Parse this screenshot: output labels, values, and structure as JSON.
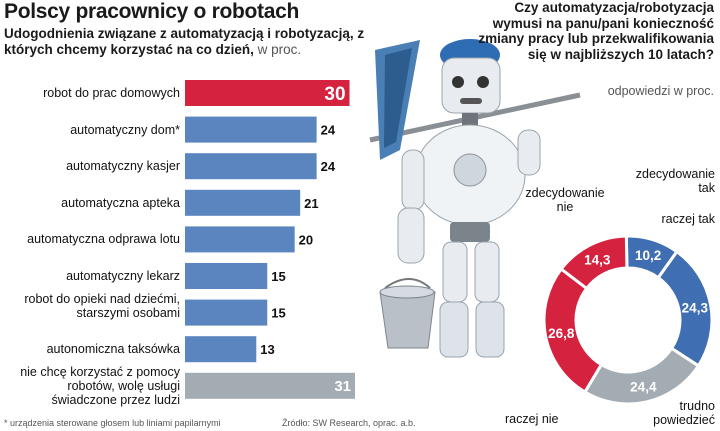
{
  "title": "Polscy pracownicy o robotach",
  "subtitle": "Udogodnienia związane z automatyzacją i robotyzacją, z których chcemy korzystać na co dzień,",
  "subtitle_unit": "w proc.",
  "footnote": "* urządzenia sterowane głosem lub liniami papilarnymi",
  "source": "Źródło: SW Research, oprac. a.b.",
  "question": {
    "title": "Czy automatyzacja/robotyzacja wymusi na panu/pani konieczność zmiany pracy lub przekwalifikowania się w najbliższych 10 latach?",
    "unit": "odpowiedzi w proc."
  },
  "colors": {
    "highlight": "#d4223f",
    "blue": "#5a85bf",
    "gray": "#a4acb3",
    "donut_blue": "#3f6fb2",
    "donut_red": "#d4223f",
    "donut_gray": "#a4acb3"
  },
  "chart_data": [
    {
      "type": "bar",
      "orientation": "horizontal",
      "title": "Udogodnienia związane z automatyzacją i robotyzacją, z których chcemy korzystać na co dzień",
      "unit": "w proc.",
      "categories": [
        "robot do prac domowych",
        "automatyczny dom*",
        "automatyczny kasjer",
        "automatyczna apteka",
        "automatyczna odprawa lotu",
        "automatyczny lekarz",
        "robot do opieki nad dziećmi, starszymi osobami",
        "autonomiczna taksówka",
        "nie chcę korzystać z pomocy robotów, wolę usługi świadczone przez ludzi"
      ],
      "values": [
        30,
        24,
        24,
        21,
        20,
        15,
        15,
        13,
        31
      ],
      "bar_colors": [
        "highlight",
        "blue",
        "blue",
        "blue",
        "blue",
        "blue",
        "blue",
        "blue",
        "gray"
      ]
    },
    {
      "type": "pie",
      "variant": "donut",
      "title": "Czy automatyzacja/robotyzacja wymusi na panu/pani konieczność zmiany pracy lub przekwalifikowania się w najbliższych 10 latach?",
      "unit": "odpowiedzi w proc.",
      "slices": [
        {
          "label": "zdecydowanie tak",
          "value": 10.2,
          "display": "10,2",
          "color": "donut_blue"
        },
        {
          "label": "raczej tak",
          "value": 24.3,
          "display": "24,3",
          "color": "donut_blue"
        },
        {
          "label": "trudno powiedzieć",
          "value": 24.4,
          "display": "24,4",
          "color": "donut_gray"
        },
        {
          "label": "raczej nie",
          "value": 26.8,
          "display": "26,8",
          "color": "donut_red"
        },
        {
          "label": "zdecydowanie nie",
          "value": 14.3,
          "display": "14,3",
          "color": "donut_red"
        }
      ]
    }
  ]
}
